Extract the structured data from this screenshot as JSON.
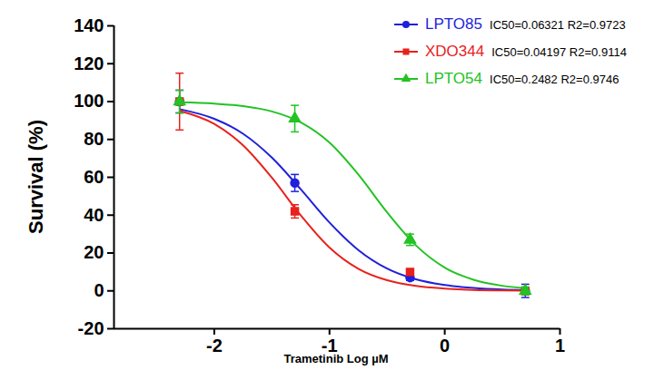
{
  "chart_data": {
    "type": "scatter",
    "x_label": "Trametinib Log µM",
    "y_label": "Survival (%)",
    "xlim": [
      -2.87,
      1
    ],
    "xticks": [
      -2,
      -1,
      0,
      1
    ],
    "ylim": [
      -20,
      140
    ],
    "yticks": [
      -20,
      0,
      20,
      40,
      60,
      80,
      100,
      120,
      140
    ],
    "grid": false,
    "legend": "top right",
    "x": [
      -2.301,
      -1.301,
      -0.301,
      0.699
    ],
    "curve_x": [
      -2.3,
      -2,
      -1.75,
      -1.5,
      -1.25,
      -1,
      -0.75,
      -0.5,
      -0.25,
      0,
      0.25,
      0.5,
      0.7
    ],
    "series": [
      {
        "name": "LPTO85",
        "fit_label": "IC50=0.06321  R2=0.9723",
        "color": "#1f1fdc",
        "marker": "circle",
        "values": [
          100,
          57,
          7,
          0
        ],
        "errors": [
          6,
          4.5,
          1.5,
          3.5
        ],
        "curve_values": [
          96.0,
          90.9,
          83.0,
          70.4,
          53.7,
          36.1,
          21.6,
          11.8,
          6.1,
          3.1,
          1.5,
          0.7,
          0.4
        ]
      },
      {
        "name": "XDO344",
        "fit_label": "IC50=0.04197  R2=0.9114",
        "color": "#e8211c",
        "marker": "square",
        "values": [
          100,
          42,
          10,
          0
        ],
        "errors": [
          15,
          3.5,
          1,
          2
        ],
        "curve_values": [
          95.1,
          88.2,
          76.9,
          59.8,
          39.9,
          22.9,
          11.7,
          5.6,
          2.6,
          1.2,
          0.5,
          0.2,
          0.1
        ]
      },
      {
        "name": "LPTO54",
        "fit_label": "IC50=0.2482  R2=0.9746",
        "color": "#22c322",
        "marker": "triangle",
        "values": [
          100,
          91,
          27,
          0
        ],
        "errors": [
          6,
          7,
          3,
          2
        ],
        "curve_values": [
          99.6,
          98.9,
          97.6,
          94.8,
          89.0,
          78.3,
          61.5,
          41.5,
          24.0,
          12.3,
          5.9,
          2.7,
          1.4
        ]
      }
    ]
  }
}
